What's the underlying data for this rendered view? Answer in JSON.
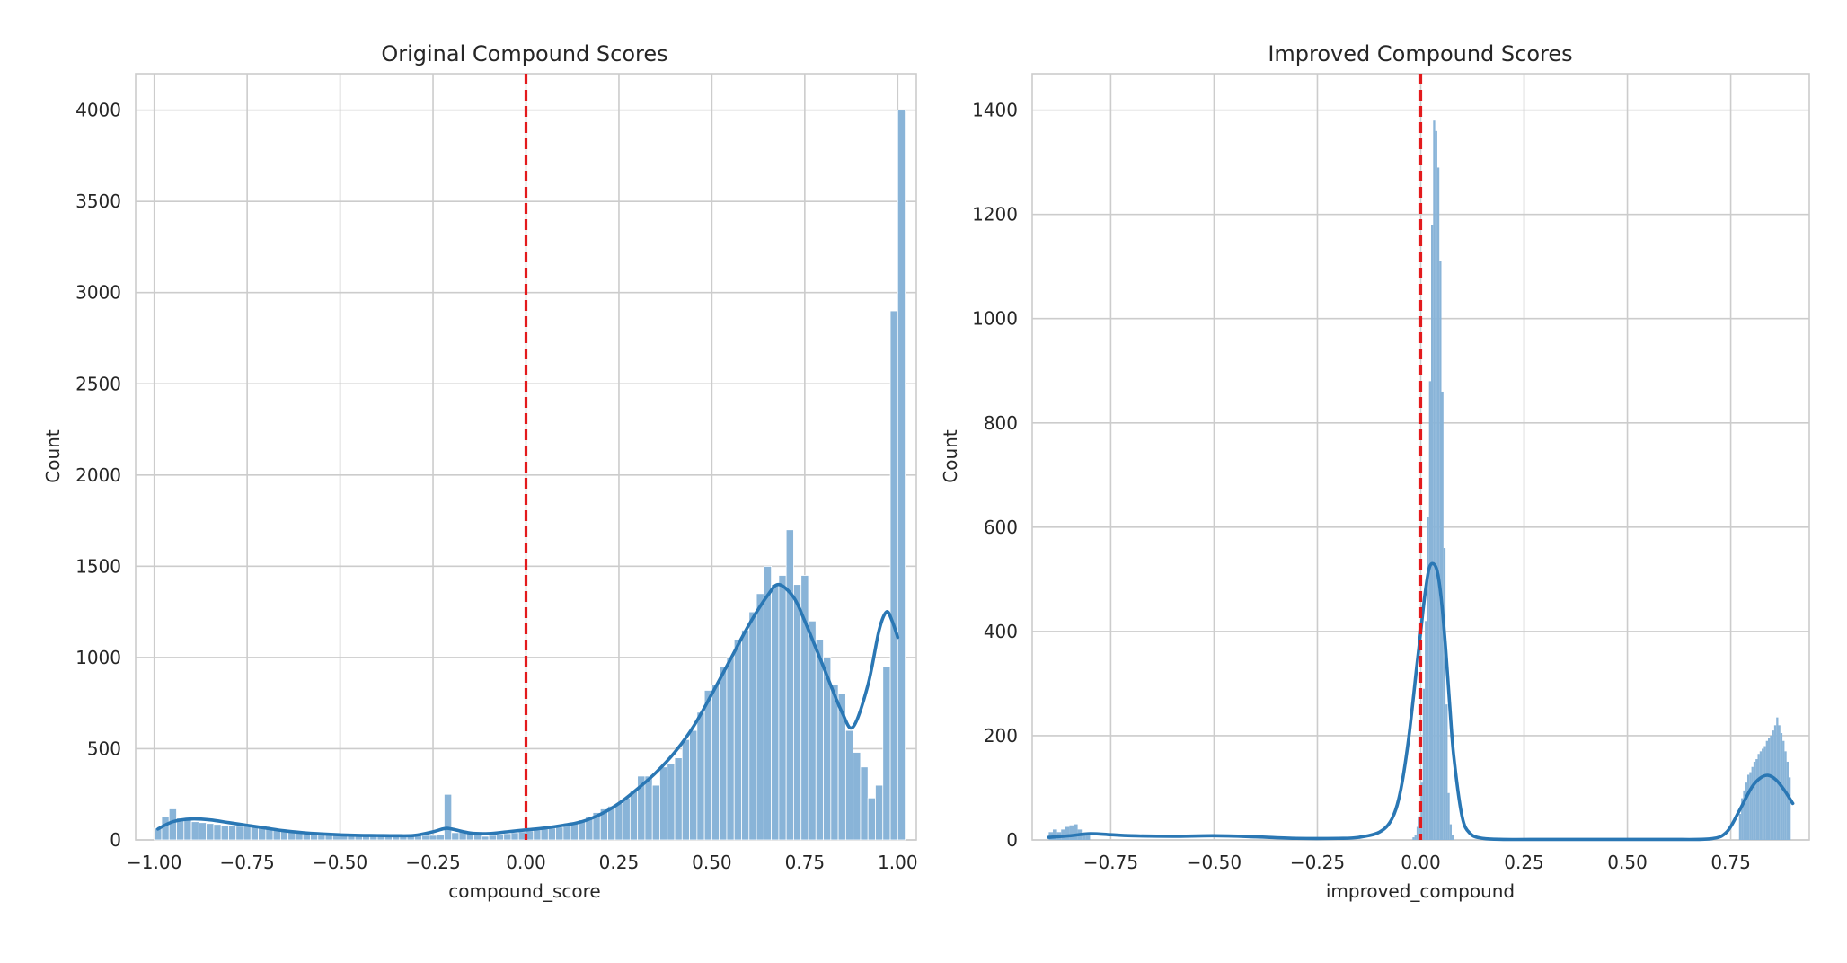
{
  "chart_data": [
    {
      "type": "bar",
      "title": "Original Compound Scores",
      "xlabel": "compound_score",
      "ylabel": "Count",
      "xlim": [
        -1.05,
        1.05
      ],
      "ylim": [
        0,
        4200
      ],
      "xticks": [
        -1.0,
        -0.75,
        -0.5,
        -0.25,
        0.0,
        0.25,
        0.5,
        0.75,
        1.0
      ],
      "xtick_labels": [
        "−1.00",
        "−0.75",
        "−0.50",
        "−0.25",
        "0.00",
        "0.25",
        "0.50",
        "0.75",
        "1.00"
      ],
      "yticks": [
        0,
        500,
        1000,
        1500,
        2000,
        2500,
        3000,
        3500,
        4000
      ],
      "ytick_labels": [
        "0",
        "500",
        "1000",
        "1500",
        "2000",
        "2500",
        "3000",
        "3500",
        "4000"
      ],
      "grid": true,
      "reference_line": {
        "x": 0.0,
        "style": "dashed",
        "color": "#e31a1c"
      },
      "bar_color": "#89b4d8",
      "kde_color": "#2a77b4",
      "bins": {
        "start": -1.0,
        "width": 0.02,
        "counts": [
          65,
          130,
          170,
          120,
          110,
          100,
          95,
          90,
          85,
          80,
          78,
          75,
          80,
          72,
          68,
          65,
          60,
          55,
          50,
          45,
          40,
          38,
          35,
          33,
          32,
          30,
          30,
          28,
          28,
          27,
          26,
          26,
          25,
          25,
          25,
          25,
          25,
          25,
          30,
          250,
          40,
          45,
          40,
          35,
          20,
          25,
          30,
          35,
          40,
          45,
          50,
          55,
          60,
          65,
          70,
          80,
          95,
          110,
          130,
          150,
          170,
          185,
          200,
          230,
          270,
          350,
          350,
          300,
          400,
          420,
          450,
          550,
          600,
          700,
          820,
          850,
          950,
          1000,
          1100,
          1150,
          1250,
          1350,
          1500,
          1400,
          1450,
          1700,
          1400,
          1450,
          1200,
          1100,
          1000,
          850,
          800,
          600,
          480,
          400,
          230,
          300,
          950,
          2900,
          4000
        ]
      },
      "kde": {
        "x": [
          -0.99,
          -0.95,
          -0.9,
          -0.85,
          -0.8,
          -0.75,
          -0.7,
          -0.65,
          -0.6,
          -0.55,
          -0.5,
          -0.45,
          -0.4,
          -0.35,
          -0.3,
          -0.25,
          -0.22,
          -0.2,
          -0.15,
          -0.1,
          -0.05,
          0.0,
          0.05,
          0.1,
          0.15,
          0.2,
          0.25,
          0.3,
          0.35,
          0.4,
          0.45,
          0.5,
          0.55,
          0.6,
          0.65,
          0.68,
          0.72,
          0.75,
          0.8,
          0.85,
          0.88,
          0.92,
          0.95,
          0.97,
          0.985,
          1.0
        ],
        "y": [
          60,
          100,
          115,
          110,
          95,
          80,
          65,
          50,
          40,
          33,
          28,
          25,
          24,
          23,
          25,
          45,
          62,
          60,
          38,
          35,
          45,
          55,
          65,
          80,
          100,
          140,
          200,
          280,
          370,
          480,
          620,
          800,
          990,
          1180,
          1340,
          1400,
          1330,
          1200,
          950,
          700,
          620,
          850,
          1150,
          1250,
          1200,
          1110
        ]
      }
    },
    {
      "type": "bar",
      "title": "Improved Compound Scores",
      "xlabel": "improved_compound",
      "ylabel": "Count",
      "xlim": [
        -0.94,
        0.94
      ],
      "ylim": [
        0,
        1470
      ],
      "xticks": [
        -0.75,
        -0.5,
        -0.25,
        0.0,
        0.25,
        0.5,
        0.75
      ],
      "xtick_labels": [
        "−0.75",
        "−0.50",
        "−0.25",
        "0.00",
        "0.25",
        "0.50",
        "0.75"
      ],
      "yticks": [
        0,
        200,
        400,
        600,
        800,
        1000,
        1200,
        1400
      ],
      "ytick_labels": [
        "0",
        "200",
        "400",
        "600",
        "800",
        "1000",
        "1200",
        "1400"
      ],
      "grid": true,
      "reference_line": {
        "x": 0.0,
        "style": "dashed",
        "color": "#e31a1c"
      },
      "bar_color": "#89b4d8",
      "kde_color": "#2a77b4",
      "bins": {
        "start": -0.02,
        "width": 0.005,
        "counts": [
          5,
          10,
          25,
          45,
          110,
          290,
          420,
          620,
          880,
          1180,
          1380,
          1360,
          1290,
          1110,
          860,
          560,
          260,
          90,
          30,
          10
        ]
      },
      "bins_neg": {
        "start": -0.9,
        "width": 0.01,
        "counts": [
          15,
          20,
          15,
          20,
          25,
          28,
          30,
          20,
          12,
          10
        ]
      },
      "bins_pos": {
        "start": 0.77,
        "width": 0.005,
        "counts": [
          50,
          80,
          95,
          110,
          125,
          130,
          140,
          150,
          155,
          165,
          170,
          175,
          180,
          190,
          195,
          200,
          210,
          220,
          235,
          220,
          205,
          190,
          170,
          150,
          120
        ]
      },
      "kde": {
        "x": [
          -0.9,
          -0.85,
          -0.8,
          -0.75,
          -0.7,
          -0.6,
          -0.5,
          -0.4,
          -0.3,
          -0.2,
          -0.15,
          -0.1,
          -0.07,
          -0.05,
          -0.03,
          -0.01,
          0.0,
          0.01,
          0.02,
          0.03,
          0.04,
          0.05,
          0.06,
          0.07,
          0.08,
          0.1,
          0.12,
          0.15,
          0.2,
          0.3,
          0.4,
          0.5,
          0.6,
          0.7,
          0.74,
          0.77,
          0.8,
          0.82,
          0.84,
          0.86,
          0.88,
          0.9
        ],
        "y": [
          5,
          8,
          12,
          10,
          8,
          7,
          8,
          6,
          3,
          3,
          5,
          15,
          40,
          90,
          190,
          330,
          400,
          470,
          520,
          530,
          515,
          460,
          370,
          260,
          160,
          45,
          12,
          3,
          1,
          1,
          1,
          1,
          1,
          2,
          15,
          55,
          100,
          118,
          124,
          115,
          95,
          70
        ]
      }
    }
  ]
}
